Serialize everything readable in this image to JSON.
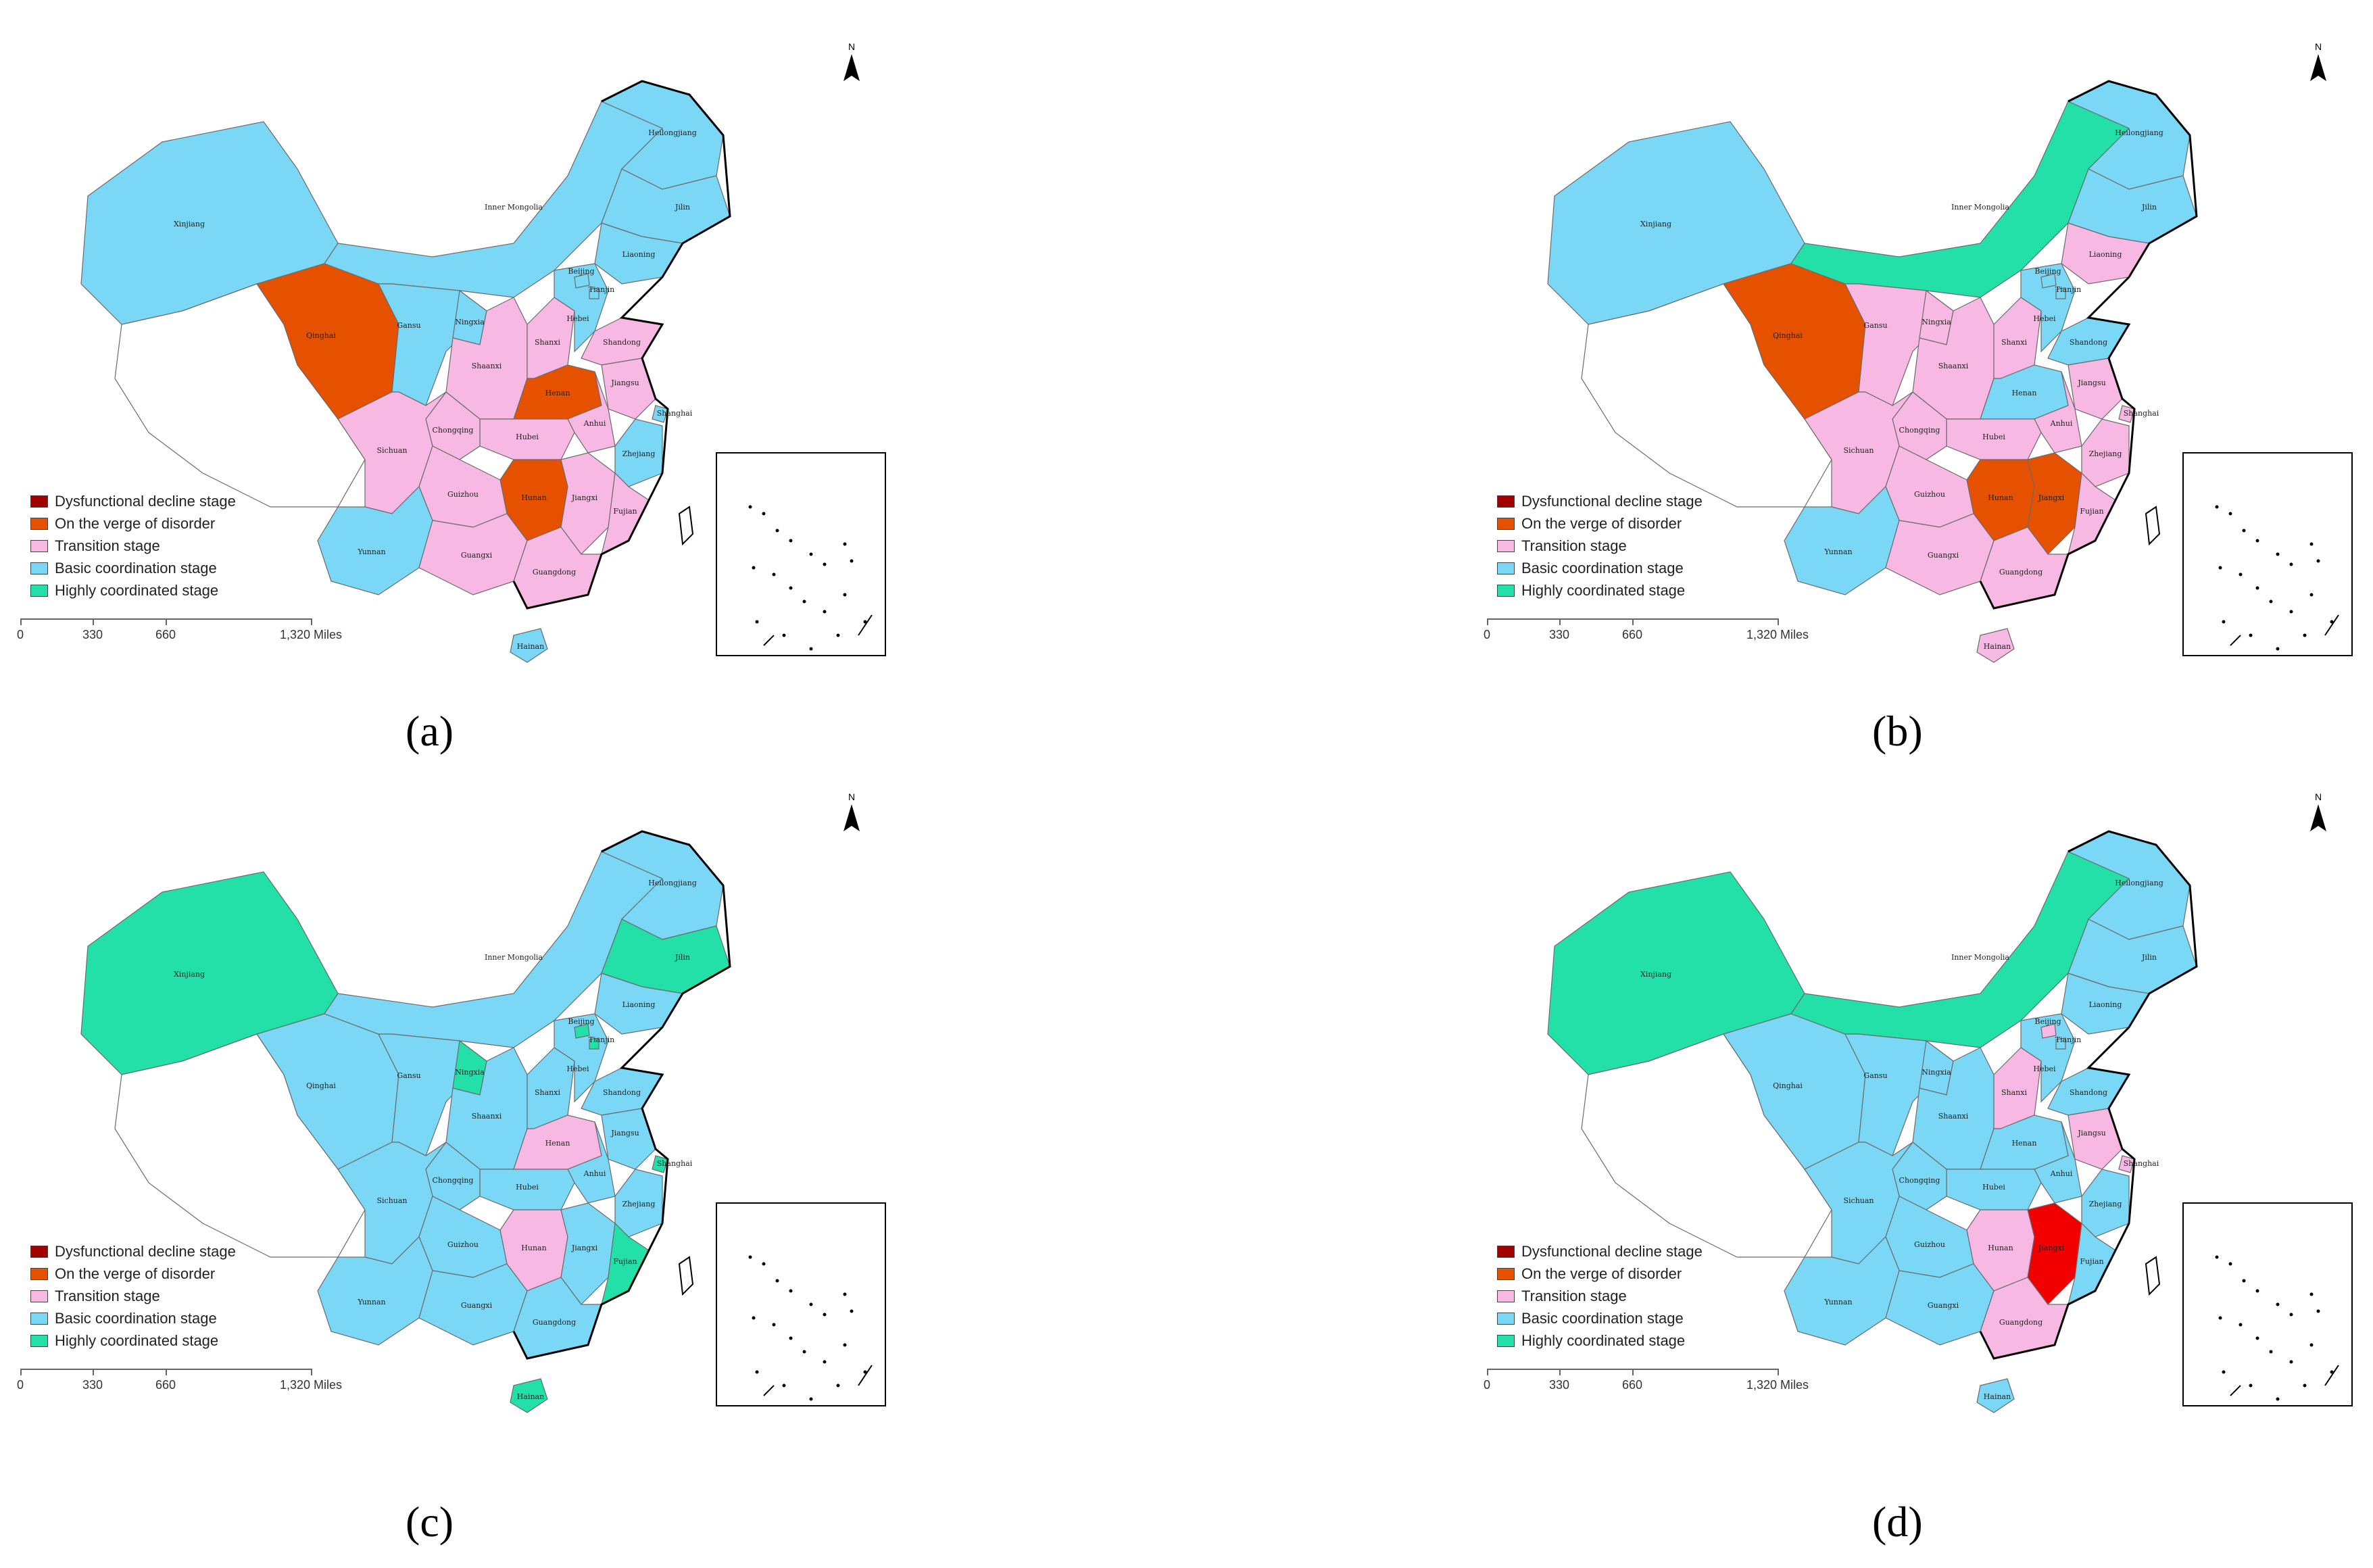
{
  "legend": [
    {
      "label": "Dysfunctional decline stage",
      "color": "#a00000"
    },
    {
      "label": "On the verge of disorder",
      "color": "#e65100"
    },
    {
      "label": "Transition stage",
      "color": "#f7b8e3"
    },
    {
      "label": "Basic coordination stage",
      "color": "#7ad7f5"
    },
    {
      "label": "Highly coordinated stage",
      "color": "#22e0a8"
    }
  ],
  "scale": {
    "ticks": [
      "0",
      "330",
      "660",
      "1,320 Miles"
    ]
  },
  "north": "N",
  "panels": [
    {
      "label": "(a)",
      "regions": {
        "Xinjiang": "basic",
        "Qinghai": "verge",
        "Tibet": "none",
        "Inner Mongolia": "basic",
        "Heilongjiang": "basic",
        "Jilin": "basic",
        "Liaoning": "basic",
        "Gansu": "basic",
        "Ningxia": "basic",
        "Shaanxi": "transition",
        "Shanxi": "transition",
        "Hebei": "basic",
        "Beijing": "basic",
        "Tianjin": "basic",
        "Shandong": "transition",
        "Henan": "verge",
        "Jiangsu": "transition",
        "Anhui": "transition",
        "Shanghai": "basic",
        "Zhejiang": "basic",
        "Hubei": "transition",
        "Sichuan": "transition",
        "Chongqing": "transition",
        "Hunan": "verge",
        "Jiangxi": "transition",
        "Fujian": "transition",
        "Guizhou": "transition",
        "Yunnan": "basic",
        "Guangxi": "transition",
        "Guangdong": "transition",
        "Hainan": "basic"
      }
    },
    {
      "label": "(b)",
      "regions": {
        "Xinjiang": "basic",
        "Qinghai": "verge",
        "Tibet": "none",
        "Inner Mongolia": "high",
        "Heilongjiang": "basic",
        "Jilin": "basic",
        "Liaoning": "transition",
        "Gansu": "transition",
        "Ningxia": "transition",
        "Shaanxi": "transition",
        "Shanxi": "transition",
        "Hebei": "basic",
        "Beijing": "basic",
        "Tianjin": "basic",
        "Shandong": "basic",
        "Henan": "basic",
        "Jiangsu": "transition",
        "Anhui": "transition",
        "Shanghai": "transition",
        "Zhejiang": "transition",
        "Hubei": "transition",
        "Sichuan": "transition",
        "Chongqing": "transition",
        "Hunan": "verge",
        "Jiangxi": "verge",
        "Fujian": "transition",
        "Guizhou": "transition",
        "Yunnan": "basic",
        "Guangxi": "transition",
        "Guangdong": "transition",
        "Hainan": "transition"
      }
    },
    {
      "label": "(c)",
      "regions": {
        "Xinjiang": "high",
        "Qinghai": "basic",
        "Tibet": "none",
        "Inner Mongolia": "basic",
        "Heilongjiang": "basic",
        "Jilin": "high",
        "Liaoning": "basic",
        "Gansu": "basic",
        "Ningxia": "high",
        "Shaanxi": "basic",
        "Shanxi": "basic",
        "Hebei": "basic",
        "Beijing": "high",
        "Tianjin": "high",
        "Shandong": "basic",
        "Henan": "transition",
        "Jiangsu": "basic",
        "Anhui": "basic",
        "Shanghai": "high",
        "Zhejiang": "basic",
        "Hubei": "basic",
        "Sichuan": "basic",
        "Chongqing": "basic",
        "Hunan": "transition",
        "Jiangxi": "basic",
        "Fujian": "high",
        "Guizhou": "basic",
        "Yunnan": "basic",
        "Guangxi": "basic",
        "Guangdong": "basic",
        "Hainan": "high"
      }
    },
    {
      "label": "(d)",
      "regions": {
        "Xinjiang": "high",
        "Qinghai": "basic",
        "Tibet": "none",
        "Inner Mongolia": "high",
        "Heilongjiang": "basic",
        "Jilin": "basic",
        "Liaoning": "basic",
        "Gansu": "basic",
        "Ningxia": "basic",
        "Shaanxi": "basic",
        "Shanxi": "transition",
        "Hebei": "basic",
        "Beijing": "transition",
        "Tianjin": "basic",
        "Shandong": "basic",
        "Henan": "basic",
        "Jiangsu": "transition",
        "Anhui": "basic",
        "Shanghai": "transition",
        "Zhejiang": "basic",
        "Hubei": "basic",
        "Sichuan": "basic",
        "Chongqing": "basic",
        "Hunan": "transition",
        "Jiangxi": "red",
        "Fujian": "basic",
        "Guizhou": "basic",
        "Yunnan": "basic",
        "Guangxi": "basic",
        "Guangdong": "transition",
        "Hainan": "basic"
      }
    }
  ],
  "province_labels": {
    "Xinjiang": "Xinjiang",
    "Qinghai": "Qinghai",
    "Inner Mongolia": "Inner Mongolia",
    "Heilongjiang": "Heilongjiang",
    "Jilin": "Jilin",
    "Liaoning": "Liaoning",
    "Gansu": "Gansu",
    "Ningxia": "Ningxia",
    "Shaanxi": "Shaanxi",
    "Shanxi": "Shanxi",
    "Hebei": "Hebei",
    "Beijing": "Beijing",
    "Tianjin": "Tianjin",
    "Shandong": "Shandong",
    "Henan": "Henan",
    "Jiangsu": "Jiangsu",
    "Anhui": "Anhui",
    "Shanghai": "Shanghai",
    "Zhejiang": "Zhejiang",
    "Hubei": "Hubei",
    "Sichuan": "Sichuan",
    "Chongqing": "Chongqing",
    "Hunan": "Hunan",
    "Jiangxi": "Jiangxi",
    "Fujian": "Fujian",
    "Guizhou": "Guizhou",
    "Yunnan": "Yunnan",
    "Guangxi": "Guangxi",
    "Guangdong": "Guangdong",
    "Hainan": "Hainan"
  }
}
